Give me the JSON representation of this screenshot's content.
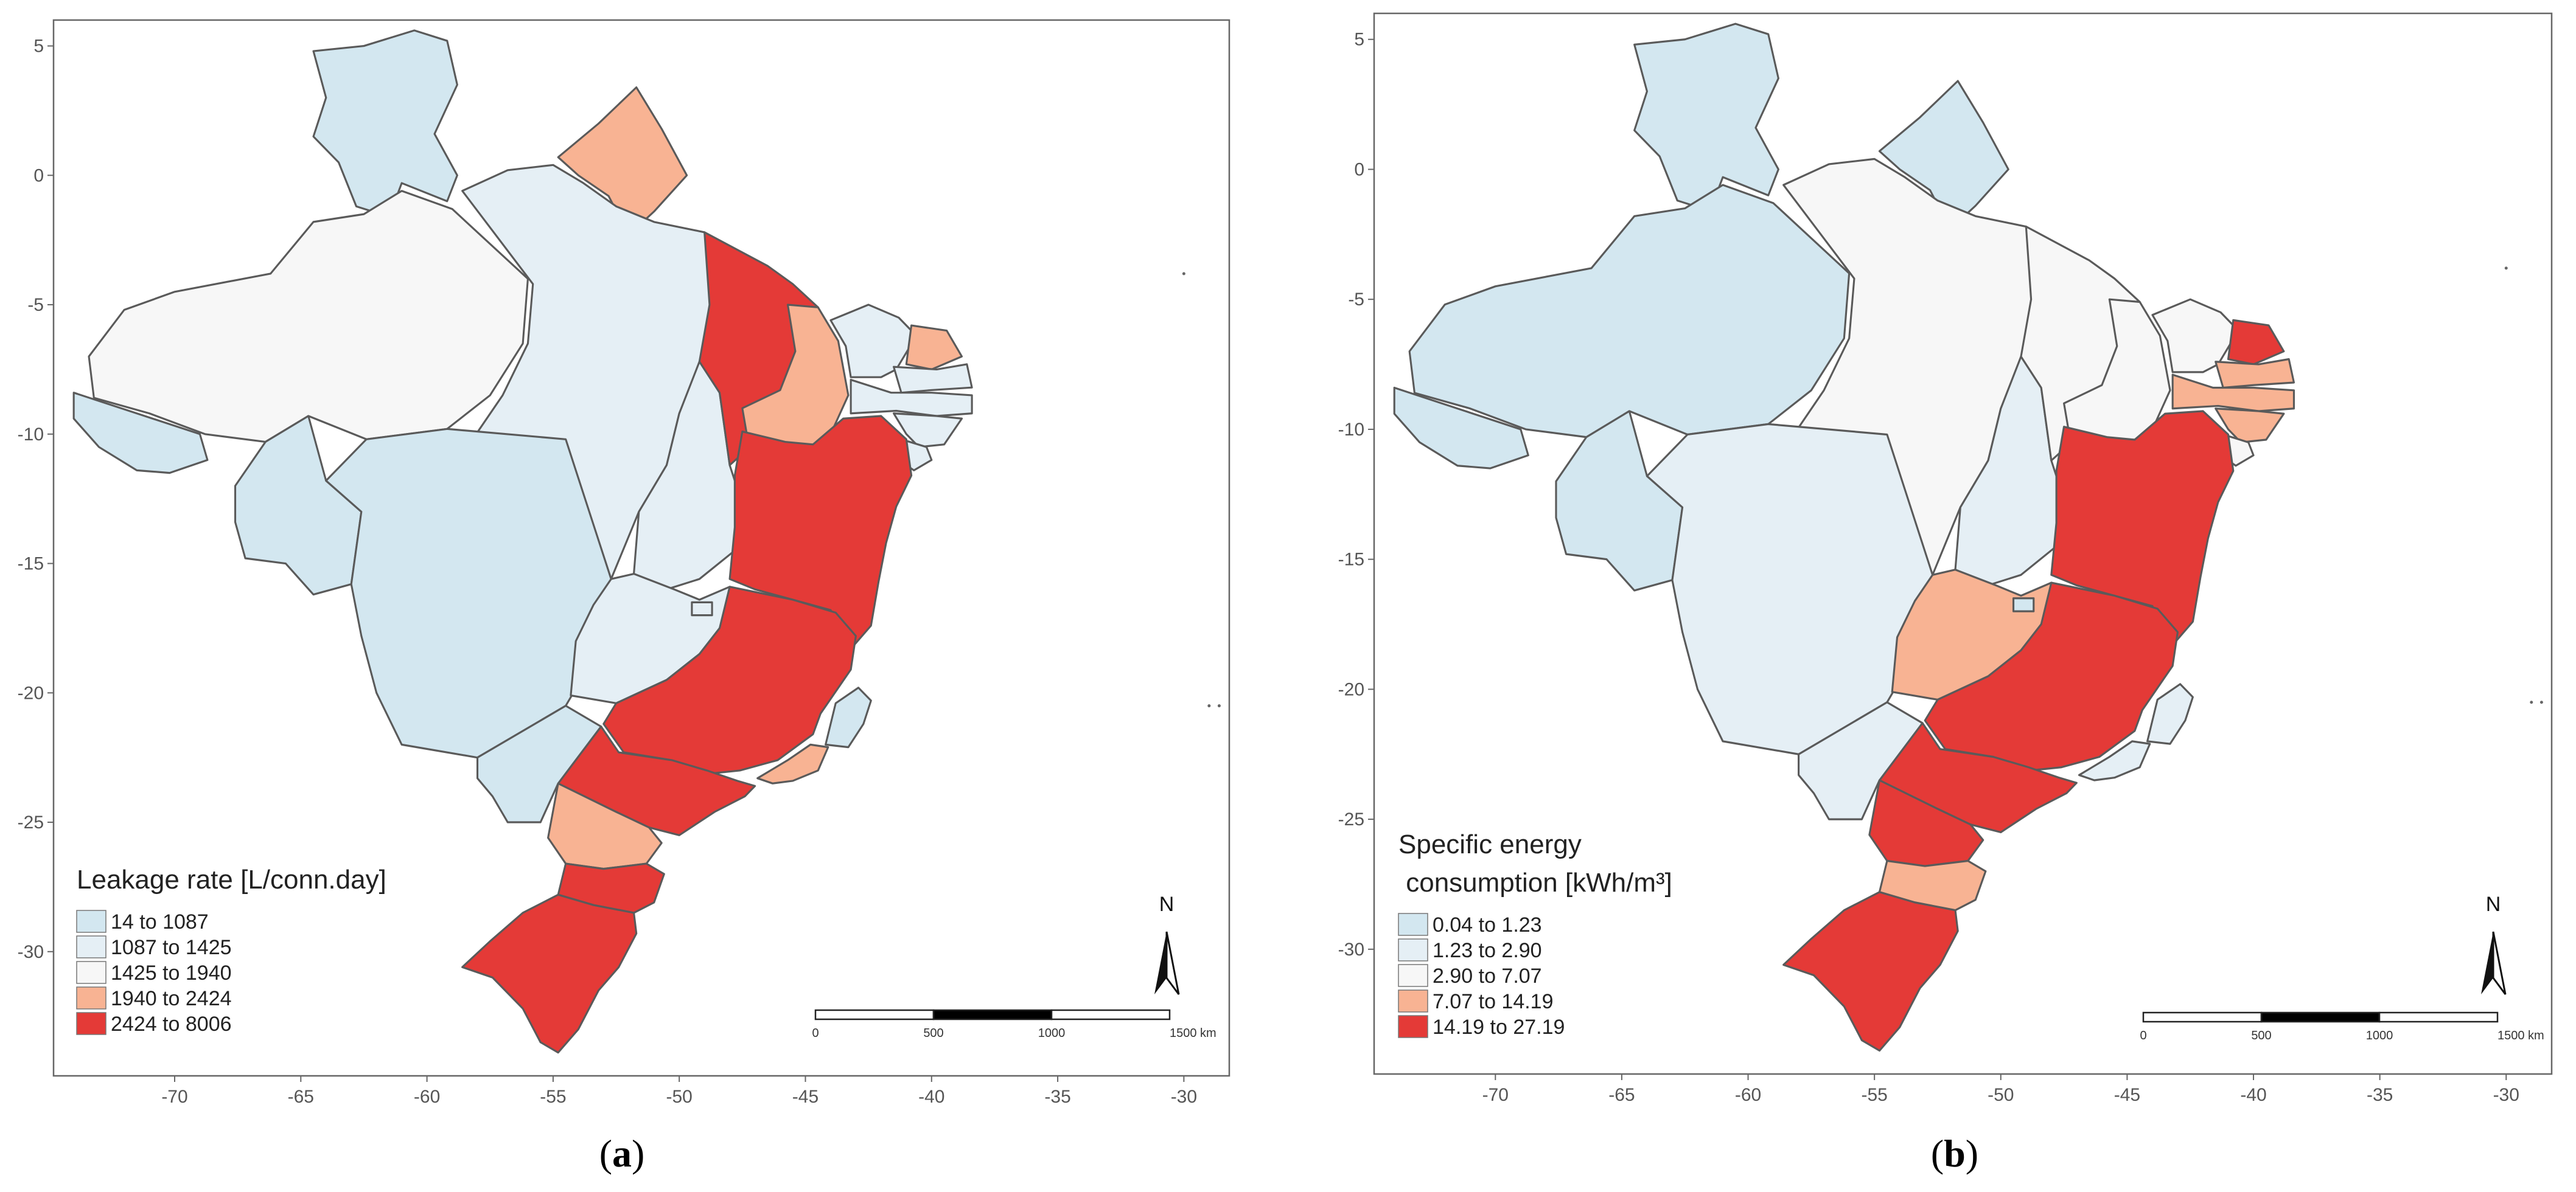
{
  "figure": {
    "panels": [
      {
        "id": "a",
        "label_open": "(",
        "label": "a",
        "label_close": ")",
        "legend_title": "Leakage rate [L/conn.day]",
        "legend_title_line2": "",
        "classes": [
          "14 to 1087",
          "1087 to 1425",
          "1425 to 1940",
          "1940 to 2424",
          "2424 to 8006"
        ],
        "state_classes": {
          "RR": 0,
          "AP": 3,
          "AM": 2,
          "PA": 1,
          "AC": 0,
          "RO": 0,
          "MT": 0,
          "TO": 1,
          "MA": 4,
          "PI": 3,
          "CE": 1,
          "RN": 3,
          "PB": 1,
          "PE": 1,
          "AL": 1,
          "SE": 1,
          "BA": 4,
          "GO": 1,
          "DF": 1,
          "MG": 4,
          "ES": 0,
          "RJ": 3,
          "SP": 4,
          "MS": 0,
          "PR": 3,
          "SC": 4,
          "RS": 4
        }
      },
      {
        "id": "b",
        "label_open": "(",
        "label": "b",
        "label_close": ")",
        "legend_title": "Specific energy",
        "legend_title_line2": " consumption [kWh/m³]",
        "classes": [
          "0.04 to 1.23",
          "1.23 to 2.90",
          "2.90 to 7.07",
          "7.07 to 14.19",
          "14.19 to 27.19"
        ],
        "state_classes": {
          "RR": 0,
          "AP": 0,
          "AM": 0,
          "PA": 2,
          "AC": 0,
          "RO": 0,
          "MT": 1,
          "TO": 1,
          "MA": 2,
          "PI": 2,
          "CE": 2,
          "RN": 4,
          "PB": 3,
          "PE": 3,
          "AL": 3,
          "SE": 2,
          "BA": 4,
          "GO": 3,
          "DF": 0,
          "MG": 4,
          "ES": 1,
          "RJ": 1,
          "SP": 4,
          "MS": 1,
          "PR": 4,
          "SC": 3,
          "RS": 4
        }
      }
    ],
    "colors": [
      "#d3e7f0",
      "#e5eff5",
      "#f7f7f7",
      "#f8b393",
      "#e43a37"
    ],
    "axis": {
      "x_ticks": [
        -70,
        -65,
        -60,
        -55,
        -50,
        -45,
        -40,
        -35,
        -30
      ],
      "y_ticks": [
        5,
        0,
        -5,
        -10,
        -15,
        -20,
        -25,
        -30
      ],
      "x_range": [
        -74.8,
        -28.2
      ],
      "y_range": [
        6.0,
        -34.8
      ]
    },
    "scale_bar": {
      "labels": [
        "0",
        "500",
        "1000",
        "1500 km"
      ]
    },
    "north_arrow": {
      "label": "N"
    }
  }
}
